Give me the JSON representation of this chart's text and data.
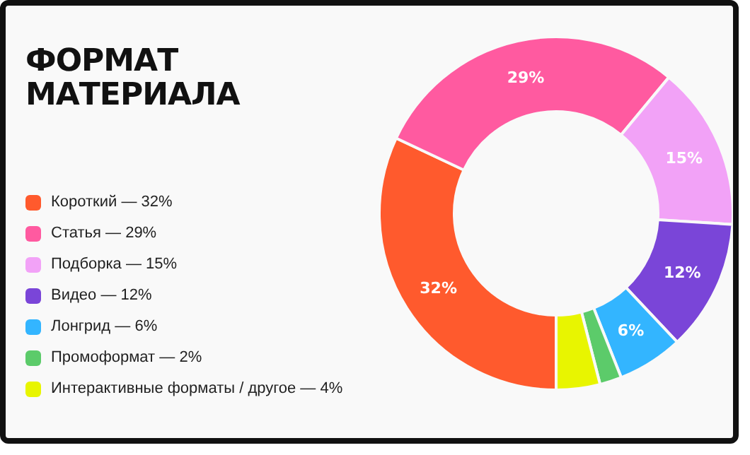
{
  "chart_data": {
    "type": "donut",
    "title": "ФОРМАТ МАТЕРИАЛА",
    "categories": [
      "Короткий — 32%",
      "Статья — 29%",
      "Подборка — 15%",
      "Видео — 12%",
      "Лонгрид — 6%",
      "Промоформат — 2%",
      "Интерактивные форматы / другое — 4%"
    ],
    "values": [
      32,
      29,
      15,
      12,
      6,
      2,
      4
    ],
    "colors": [
      "#ff5a2d",
      "#ff5aa0",
      "#f2a2f7",
      "#7a45d8",
      "#33b5ff",
      "#5ccb6a",
      "#e8f500"
    ],
    "value_labels": [
      "32%",
      "29%",
      "15%",
      "12%",
      "6%",
      null,
      null
    ],
    "legend": "left"
  }
}
